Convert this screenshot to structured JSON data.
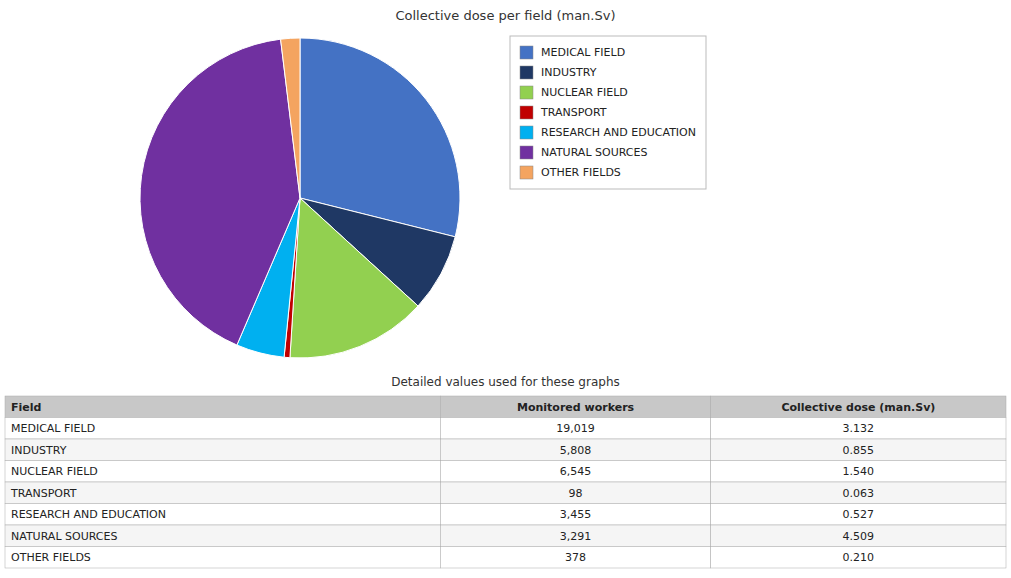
{
  "chart_data": [
    {
      "type": "pie",
      "title": "Collective dose per field (man.Sv)",
      "categories": [
        "MEDICAL FIELD",
        "INDUSTRY",
        "NUCLEAR FIELD",
        "TRANSPORT",
        "RESEARCH AND EDUCATION",
        "NATURAL SOURCES",
        "OTHER FIELDS"
      ],
      "values": [
        3.132,
        0.855,
        1.54,
        0.063,
        0.527,
        4.509,
        0.21
      ],
      "colors": [
        "#4472C4",
        "#1F3864",
        "#92D050",
        "#C00000",
        "#00B0F0",
        "#7030A0",
        "#F4A460"
      ],
      "legend": "right"
    },
    {
      "type": "table",
      "title": "Detailed values used for these graphs",
      "columns": [
        "Field",
        "Monitored workers",
        "Collective dose (man.Sv)"
      ],
      "rows": [
        [
          "MEDICAL FIELD",
          {
            "value": 19019,
            "label": "19,019"
          },
          {
            "value": 3.132,
            "label": "3.132"
          }
        ],
        [
          "INDUSTRY",
          {
            "value": 5808,
            "label": "5,808"
          },
          {
            "value": 0.855,
            "label": "0.855"
          }
        ],
        [
          "NUCLEAR FIELD",
          {
            "value": 6545,
            "label": "6,545"
          },
          {
            "value": 1.54,
            "label": "1.540"
          }
        ],
        [
          "TRANSPORT",
          {
            "value": 98,
            "label": "98"
          },
          {
            "value": 0.063,
            "label": "0.063"
          }
        ],
        [
          "RESEARCH AND EDUCATION",
          {
            "value": 3455,
            "label": "3,455"
          },
          {
            "value": 0.527,
            "label": "0.527"
          }
        ],
        [
          "NATURAL SOURCES",
          {
            "value": 3291,
            "label": "3,291"
          },
          {
            "value": 4.509,
            "label": "4.509"
          }
        ],
        [
          "OTHER FIELDS",
          {
            "value": 378,
            "label": "378"
          },
          {
            "value": 0.21,
            "label": "0.210"
          }
        ]
      ]
    }
  ]
}
